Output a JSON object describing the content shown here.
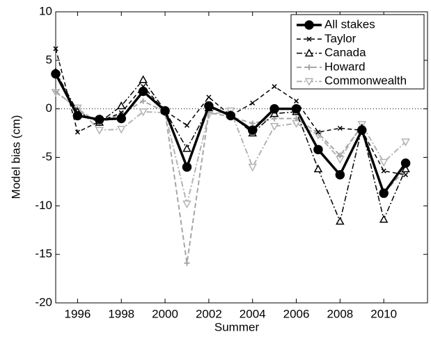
{
  "chart_data": {
    "type": "line",
    "xlabel": "Summer",
    "ylabel": "Model bias (cm)",
    "x": [
      1995,
      1996,
      1997,
      1998,
      1999,
      2000,
      2001,
      2002,
      2003,
      2004,
      2005,
      2006,
      2007,
      2008,
      2009,
      2010,
      2011
    ],
    "xlim": [
      1995,
      2012
    ],
    "xticks": [
      1996,
      1998,
      2000,
      2002,
      2004,
      2006,
      2008,
      2010
    ],
    "ylim": [
      -20,
      10
    ],
    "yticks": [
      -20,
      -15,
      -10,
      -5,
      0,
      5,
      10
    ],
    "zero_line": true,
    "legend": "upper right",
    "series": [
      {
        "name": "All stakes",
        "color": "#000000",
        "width": 3.5,
        "dash": "none",
        "marker": "circle",
        "values": [
          3.6,
          -0.7,
          -1.1,
          -1.0,
          1.8,
          -0.2,
          -6.0,
          0.3,
          -0.7,
          -2.2,
          0.0,
          0.0,
          -4.2,
          -6.8,
          -2.2,
          -8.7,
          -5.6
        ]
      },
      {
        "name": "Taylor",
        "color": "#000000",
        "width": 1.5,
        "dash": "6 4",
        "marker": "x",
        "values": [
          6.2,
          -2.4,
          -1.3,
          -0.4,
          2.3,
          -0.2,
          -1.7,
          1.2,
          -0.7,
          0.6,
          2.3,
          0.8,
          -2.4,
          -2.0,
          -2.2,
          -6.4,
          -6.8
        ]
      },
      {
        "name": "Canada",
        "color": "#000000",
        "width": 1.5,
        "dash": "8 3 2 3",
        "marker": "triangle",
        "values": [
          3.8,
          -0.3,
          -1.4,
          0.3,
          3.0,
          -0.2,
          -4.1,
          0.1,
          -0.6,
          -2.5,
          -0.5,
          -0.3,
          -6.2,
          -11.6,
          -2.0,
          -11.4,
          -6.2
        ]
      },
      {
        "name": "Howard",
        "color": "#a6a6a6",
        "width": 2,
        "dash": "7 4",
        "marker": "plus",
        "values": [
          1.8,
          0.0,
          -1.5,
          -0.5,
          0.8,
          -0.3,
          -15.9,
          -0.4,
          -0.8,
          -1.5,
          -1.0,
          -1.0,
          -2.5,
          -4.8,
          -1.8,
          -8.7,
          -6.2
        ]
      },
      {
        "name": "Commonwealth",
        "color": "#b3b3b3",
        "width": 2,
        "dash": "8 3 2 3",
        "marker": "triangle-down",
        "values": [
          1.7,
          0.1,
          -2.2,
          -2.1,
          -0.3,
          -0.4,
          -9.8,
          -0.6,
          -0.2,
          -6.0,
          -1.8,
          -1.5,
          -2.7,
          -5.2,
          -1.6,
          -5.5,
          -3.4
        ]
      }
    ]
  }
}
